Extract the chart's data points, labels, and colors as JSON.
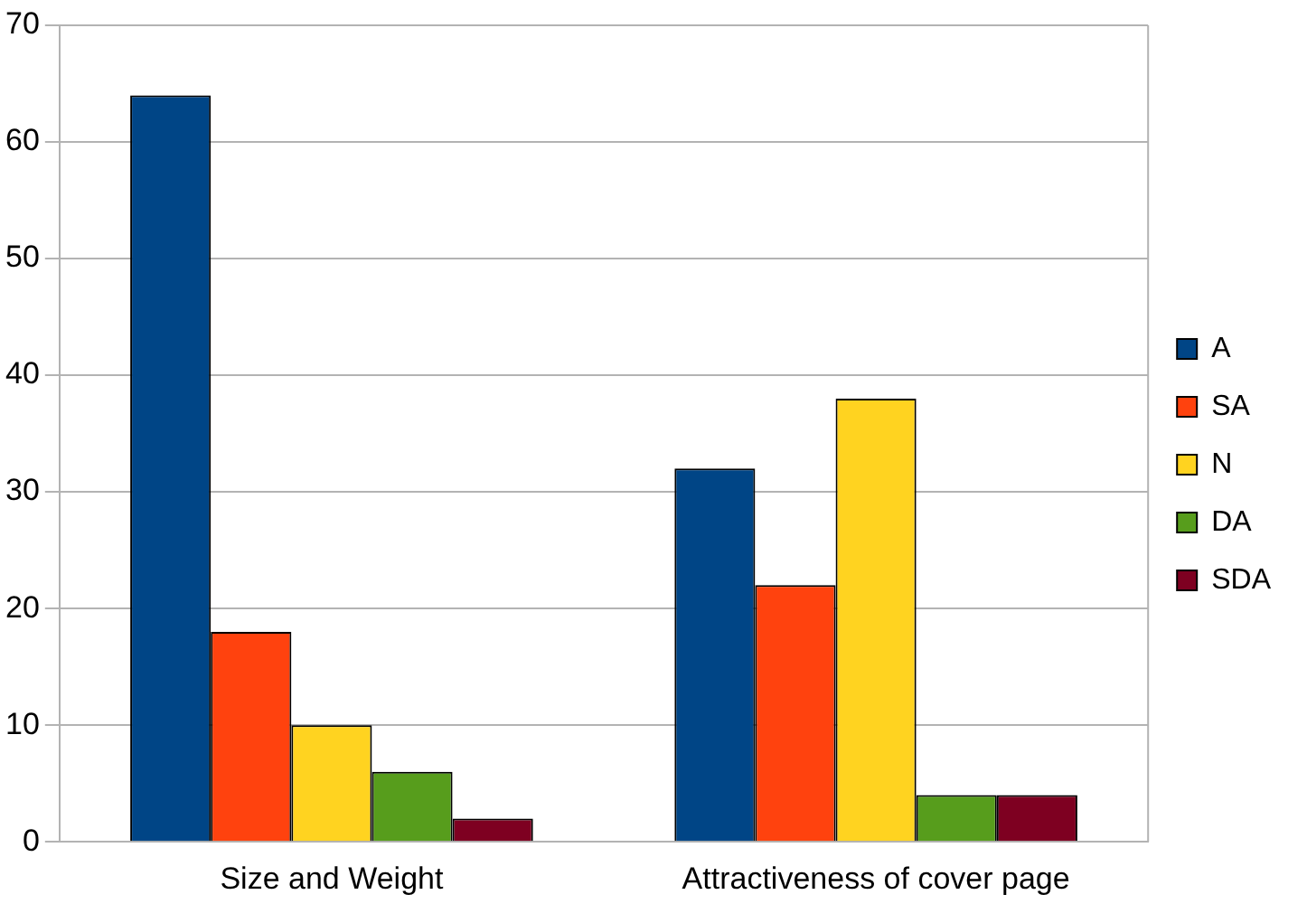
{
  "chart_data": {
    "type": "bar",
    "categories": [
      "Size and Weight",
      "Attractiveness of cover page"
    ],
    "series": [
      {
        "name": "A",
        "color": "#004586",
        "values": [
          64,
          32
        ]
      },
      {
        "name": "SA",
        "color": "#ff420e",
        "values": [
          18,
          22
        ]
      },
      {
        "name": "N",
        "color": "#ffd320",
        "values": [
          10,
          38
        ]
      },
      {
        "name": "DA",
        "color": "#579d1c",
        "values": [
          6,
          4
        ]
      },
      {
        "name": "SDA",
        "color": "#7e0021",
        "values": [
          2,
          4
        ]
      }
    ],
    "ylim": [
      0,
      70
    ],
    "yticks": [
      0,
      10,
      20,
      30,
      40,
      50,
      60,
      70
    ],
    "grid": "y",
    "legend": "right"
  }
}
